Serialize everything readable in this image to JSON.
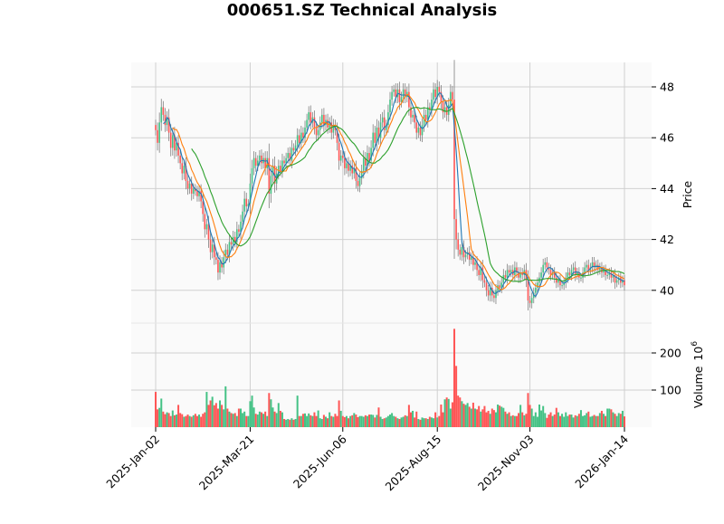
{
  "chart_data": {
    "type": "candlestick",
    "title": "000651.SZ Technical Analysis",
    "ylabel": "Price",
    "volume_label": "Volume",
    "volume_unit": "10",
    "volume_unit_exp": "6",
    "ylim": [
      39.1,
      48.9
    ],
    "volume_ylim": [
      0,
      250
    ],
    "grid": true,
    "colors": {
      "up": "#44c285",
      "down": "#ff5555",
      "wick": "#808080",
      "ma5": "#1f77b4",
      "ma10": "#ff7f0e",
      "ma20": "#2ca02c",
      "panel_bg": "#fafafa",
      "grid": "#d0d0d0"
    },
    "moving_averages": [
      5,
      10,
      20
    ],
    "yticks": [
      40,
      42,
      44,
      46,
      48
    ],
    "volume_yticks": [
      100,
      200
    ],
    "xticks": [
      {
        "index": 0,
        "label": "2025-Jan-02"
      },
      {
        "index": 50,
        "label": "2025-Mar-21"
      },
      {
        "index": 99,
        "label": "2025-Jun-06"
      },
      {
        "index": 149,
        "label": "2025-Aug-15"
      },
      {
        "index": 198,
        "label": "2025-Nov-03"
      },
      {
        "index": 248,
        "label": "2026-Jan-14"
      }
    ],
    "close": [
      46.3,
      45.8,
      46.6,
      47.2,
      46.9,
      46.5,
      46.8,
      46.2,
      45.6,
      46.1,
      45.5,
      45.8,
      45.3,
      45.0,
      44.6,
      44.9,
      44.3,
      44.0,
      44.2,
      43.8,
      44.0,
      43.9,
      43.7,
      43.9,
      43.5,
      43.0,
      42.4,
      42.6,
      42.0,
      41.5,
      41.8,
      41.3,
      41.2,
      40.7,
      41.1,
      40.9,
      41.3,
      41.6,
      41.4,
      41.9,
      41.8,
      42.1,
      41.9,
      42.4,
      42.3,
      42.7,
      43.1,
      43.6,
      43.3,
      43.4,
      44.2,
      44.8,
      45.2,
      44.9,
      45.1,
      45.3,
      45.0,
      45.2,
      44.8,
      45.2,
      43.8,
      44.5,
      44.9,
      44.2,
      44.6,
      44.9,
      44.7,
      45.1,
      45.0,
      45.2,
      45.4,
      45.1,
      45.6,
      45.5,
      45.7,
      46.1,
      45.8,
      46.2,
      46.0,
      46.4,
      46.7,
      47.0,
      46.6,
      46.8,
      46.4,
      46.1,
      46.3,
      46.6,
      46.9,
      46.5,
      46.7,
      46.4,
      46.6,
      46.2,
      46.5,
      46.3,
      45.8,
      45.1,
      45.3,
      45.2,
      44.8,
      45.0,
      44.7,
      44.9,
      44.6,
      44.8,
      44.3,
      44.1,
      44.4,
      44.7,
      45.2,
      44.9,
      45.4,
      45.1,
      45.6,
      46.2,
      45.8,
      46.4,
      46.0,
      46.6,
      46.8,
      46.3,
      46.5,
      47.0,
      47.5,
      47.8,
      47.9,
      47.6,
      47.9,
      47.4,
      47.6,
      47.9,
      47.6,
      47.8,
      47.2,
      46.8,
      46.9,
      46.6,
      46.2,
      46.4,
      46.1,
      46.5,
      46.9,
      46.7,
      47.2,
      47.1,
      47.5,
      47.9,
      47.6,
      48.0,
      47.8,
      47.4,
      47.0,
      47.2,
      46.9,
      47.3,
      47.8,
      47.5,
      42.8,
      42.0,
      41.6,
      41.4,
      41.7,
      41.3,
      41.4,
      41.5,
      41.2,
      41.3,
      41.0,
      41.1,
      40.8,
      40.6,
      40.9,
      40.4,
      40.3,
      40.0,
      39.8,
      40.1,
      39.8,
      39.7,
      40.0,
      40.2,
      40.1,
      40.3,
      40.6,
      40.5,
      40.8,
      40.7,
      40.8,
      40.6,
      40.9,
      40.7,
      40.5,
      40.7,
      40.6,
      40.8,
      40.4,
      39.6,
      39.5,
      39.7,
      39.9,
      40.1,
      40.3,
      40.5,
      40.7,
      41.0,
      41.1,
      40.9,
      40.8,
      40.6,
      40.7,
      40.5,
      40.3,
      40.4,
      40.2,
      40.2,
      40.3,
      40.5,
      40.7,
      40.6,
      40.8,
      40.9,
      40.6,
      40.7,
      40.5,
      40.5,
      40.7,
      40.9,
      41.0,
      40.8,
      40.9,
      41.1,
      40.9,
      41.0,
      40.8,
      40.9,
      40.7,
      40.8,
      40.6,
      40.6,
      40.7,
      40.5,
      40.6,
      40.3,
      40.4,
      40.5,
      40.3,
      40.4,
      40.2
    ],
    "volume": [
      95,
      48,
      52,
      77,
      42,
      35,
      40,
      38,
      30,
      45,
      32,
      34,
      60,
      38,
      35,
      28,
      30,
      34,
      30,
      28,
      32,
      36,
      30,
      34,
      28,
      36,
      40,
      95,
      60,
      72,
      82,
      59,
      65,
      50,
      72,
      60,
      48,
      110,
      50,
      42,
      38,
      36,
      38,
      30,
      50,
      50,
      38,
      42,
      30,
      30,
      70,
      85,
      53,
      36,
      34,
      42,
      40,
      36,
      42,
      30,
      92,
      75,
      53,
      42,
      38,
      65,
      44,
      40,
      22,
      20,
      22,
      20,
      24,
      20,
      22,
      85,
      30,
      30,
      36,
      37,
      30,
      37,
      32,
      30,
      40,
      30,
      45,
      24,
      22,
      33,
      28,
      24,
      40,
      30,
      28,
      36,
      30,
      72,
      44,
      30,
      27,
      30,
      24,
      30,
      32,
      38,
      34,
      27,
      30,
      30,
      28,
      32,
      30,
      34,
      34,
      33,
      26,
      33,
      53,
      28,
      22,
      24,
      26,
      30,
      34,
      38,
      30,
      28,
      24,
      22,
      26,
      28,
      32,
      30,
      60,
      40,
      44,
      26,
      42,
      22,
      20,
      26,
      24,
      24,
      22,
      28,
      26,
      24,
      40,
      26,
      30,
      61,
      40,
      75,
      80,
      76,
      50,
      67,
      265,
      165,
      85,
      80,
      70,
      63,
      60,
      65,
      55,
      50,
      66,
      50,
      48,
      57,
      42,
      48,
      57,
      40,
      44,
      36,
      50,
      46,
      40,
      61,
      58,
      55,
      52,
      42,
      36,
      40,
      30,
      32,
      30,
      30,
      38,
      60,
      40,
      32,
      36,
      92,
      60,
      50,
      30,
      40,
      28,
      61,
      45,
      57,
      38,
      25,
      34,
      40,
      30,
      34,
      52,
      40,
      30,
      36,
      28,
      40,
      30,
      34,
      34,
      26,
      32,
      30,
      36,
      46,
      30,
      32,
      38,
      42,
      28,
      30,
      33,
      30,
      30,
      38,
      44,
      36,
      30,
      50,
      50,
      48,
      40,
      36,
      30,
      38,
      36,
      44,
      29
    ]
  }
}
